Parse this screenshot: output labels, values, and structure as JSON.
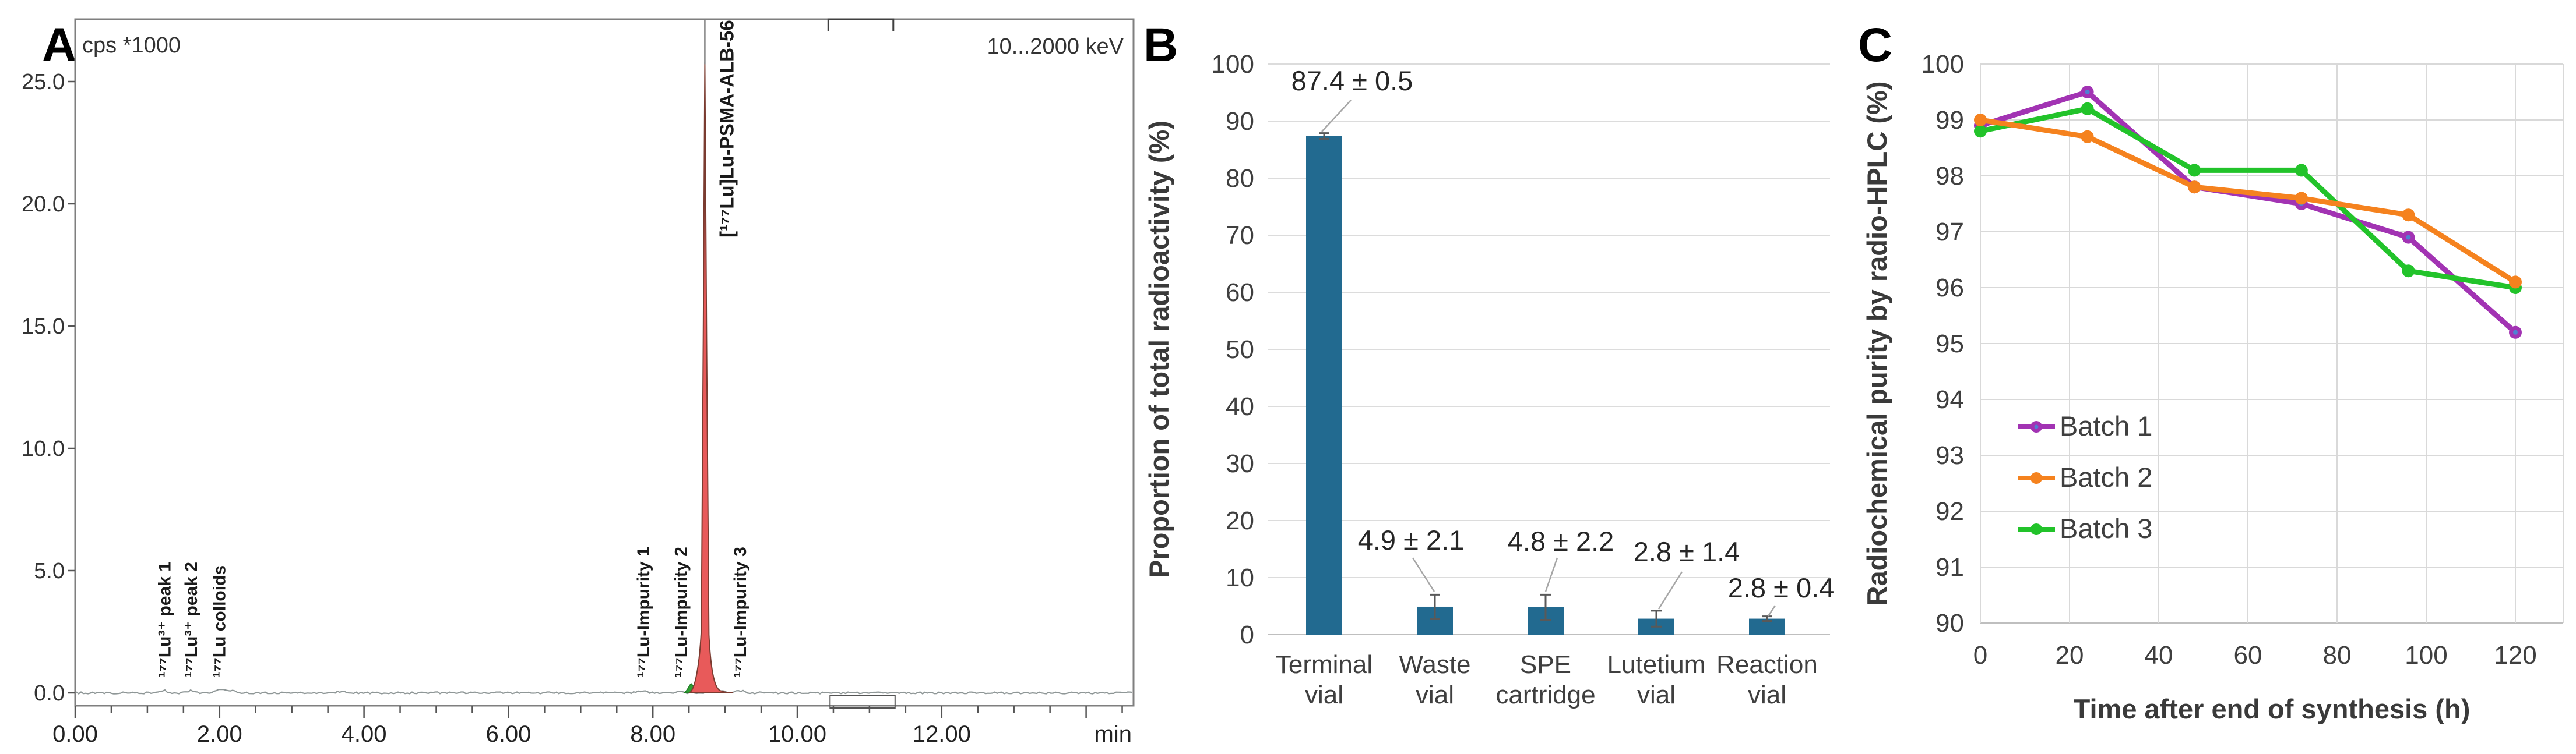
{
  "figure": {
    "background": "#ffffff",
    "panel_labels": [
      "A",
      "B",
      "C"
    ]
  },
  "chart_data": [
    {
      "panel": "A",
      "type": "line",
      "subtype": "radio-chromatogram",
      "title": "cps *1000",
      "detector_range_label": "10...2000 keV",
      "x_unit_label": "min",
      "xlim": [
        0,
        14.66
      ],
      "x_major_tick_step": 2,
      "x_minor_tick_step": 0.5,
      "x_tick_labels": [
        "0.00",
        "2.00",
        "4.00",
        "6.00",
        "8.00",
        "10.00",
        "12.00"
      ],
      "y_tick_values": [
        0,
        5,
        10,
        15,
        20,
        25
      ],
      "y_tick_labels": [
        "0.0",
        "5.0",
        "10.0",
        "15.0",
        "20.0",
        "25.0"
      ],
      "ylim": [
        0,
        27.5
      ],
      "grid": false,
      "frame_color": "#7f7f7f",
      "main_peak": {
        "label": "[¹⁷⁷Lu]Lu-PSMA-ALB-56",
        "retention_min": 8.72,
        "height": 25.8,
        "fill": "#e85a5a",
        "stroke": "#7a3b30"
      },
      "shoulder_peak": {
        "retention_min": 8.53,
        "height": 0.38,
        "fill": "#2f9e33",
        "stroke": "#1d7a22"
      },
      "annotations": [
        {
          "text": "¹⁷⁷Lu³⁺ peak 1",
          "x_min": 1.23
        },
        {
          "text": "¹⁷⁷Lu³⁺ peak 2",
          "x_min": 1.6
        },
        {
          "text": "¹⁷⁷Lu colloids",
          "x_min": 1.99
        },
        {
          "text": "¹⁷⁷Lu-Impurity 1",
          "x_min": 7.86
        },
        {
          "text": "¹⁷⁷Lu-Impurity 2",
          "x_min": 8.38
        },
        {
          "text": "¹⁷⁷Lu-Impurity 3",
          "x_min": 9.2
        }
      ],
      "region_marker_min": [
        10.43,
        11.33
      ]
    },
    {
      "panel": "B",
      "type": "bar",
      "ylabel": "Proportion of total radioactivity (%)",
      "ylim": [
        0,
        100
      ],
      "y_tick_step": 10,
      "y_tick_labels": [
        "0",
        "10",
        "20",
        "30",
        "40",
        "50",
        "60",
        "70",
        "80",
        "90",
        "100"
      ],
      "categories": [
        [
          "Terminal",
          "vial"
        ],
        [
          "Waste",
          "vial"
        ],
        [
          "SPE",
          "cartridge"
        ],
        [
          "Lutetium",
          "vial"
        ],
        [
          "Reaction",
          "vial"
        ]
      ],
      "values": [
        87.4,
        4.9,
        4.8,
        2.8,
        2.8
      ],
      "errors": [
        0.5,
        2.1,
        2.2,
        1.4,
        0.4
      ],
      "value_labels": [
        "87.4 ± 0.5",
        "4.9 ± 2.1",
        "4.8 ± 2.2",
        "2.8 ± 1.4",
        "2.8 ± 0.4"
      ],
      "bar_color": "#226a90",
      "grid": true,
      "gridline_color": "#dcdcdc"
    },
    {
      "panel": "C",
      "type": "line",
      "xlabel": "Time after end of synthesis (h)",
      "ylabel": "Radiochemical purity by radio-HPLC (%)",
      "xlim": [
        0,
        130
      ],
      "ylim": [
        90,
        100
      ],
      "x_ticks": [
        0,
        20,
        40,
        60,
        80,
        100,
        120
      ],
      "x_tick_labels": [
        "0",
        "20",
        "40",
        "60",
        "80",
        "100",
        "120"
      ],
      "y_tick_labels": [
        "90",
        "91",
        "92",
        "93",
        "94",
        "95",
        "96",
        "97",
        "98",
        "99",
        "100"
      ],
      "x": [
        0,
        24,
        48,
        72,
        96,
        120
      ],
      "series": [
        {
          "name": "Batch 1",
          "color": "#a233b3",
          "marker_center_color": "#4f81d2",
          "values": [
            98.9,
            99.5,
            97.8,
            97.5,
            96.9,
            95.2
          ]
        },
        {
          "name": "Batch 2",
          "color": "#f5821e",
          "values": [
            99.0,
            98.7,
            97.8,
            97.6,
            97.3,
            96.1
          ]
        },
        {
          "name": "Batch 3",
          "color": "#22c32a",
          "values": [
            98.8,
            99.2,
            98.1,
            98.1,
            96.3,
            96.0
          ]
        }
      ],
      "legend_position": "inside-left-middle",
      "grid": true,
      "gridline_color": "#d9d9d9"
    }
  ]
}
